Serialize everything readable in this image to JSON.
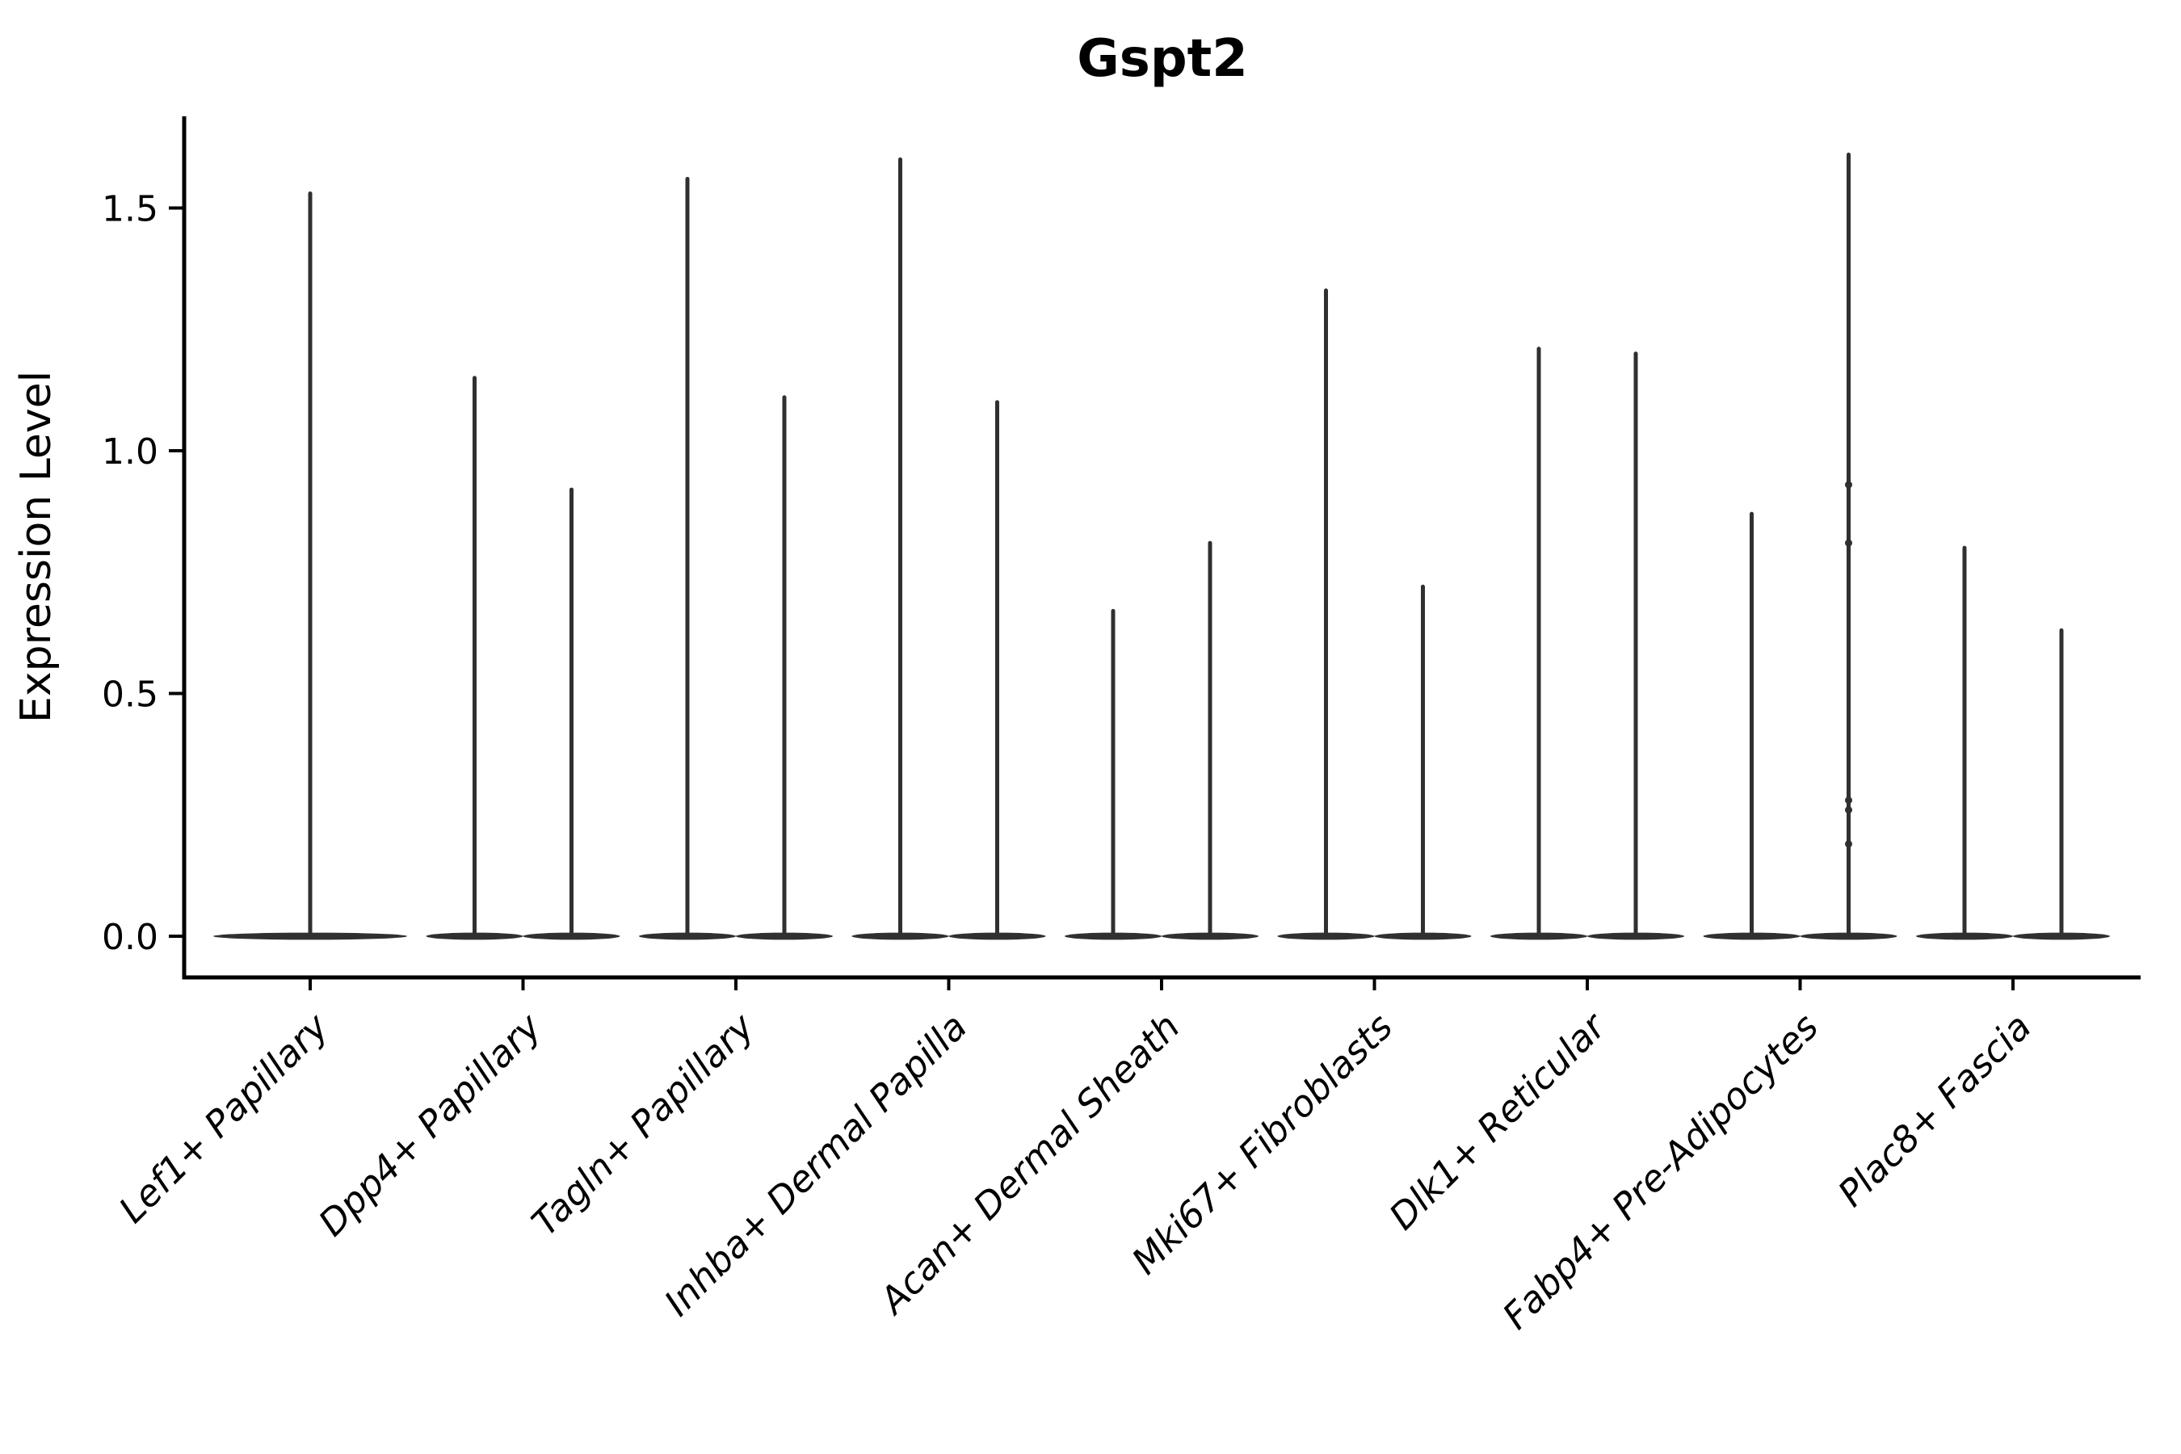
{
  "figure": {
    "background": "#ffffff"
  },
  "chart_data": {
    "type": "violin",
    "title": "Gspt2",
    "xlabel": "",
    "ylabel": "Expression Level",
    "ylim": [
      -0.085,
      1.69
    ],
    "yticks": [
      0.0,
      0.5,
      1.0,
      1.5
    ],
    "ytick_labels": [
      "0.0",
      "0.5",
      "1.0",
      "1.5"
    ],
    "grid": "off",
    "legend_position": "none",
    "categories": [
      "Lef1+ Papillary",
      "Dpp4+ Papillary",
      "Tagln+ Papillary",
      "Inhba+ Dermal Papilla",
      "Acan+ Dermal Sheath",
      "Mki67+ Fibroblasts",
      "Dlk1+ Reticular",
      "Fabp4+ Pre-Adipocytes",
      "Plac8+ Fascia"
    ],
    "violin_style_note": "sparse expression: each violin is a flat lens at 0 with a thin spike to its maximum; two grouped violins per category except the first category which has one full-width violin",
    "violins": [
      {
        "category": "Lef1+ Papillary",
        "groups": [
          {
            "side": "center",
            "max": 1.53
          }
        ]
      },
      {
        "category": "Dpp4+ Papillary",
        "groups": [
          {
            "side": "left",
            "max": 1.15
          },
          {
            "side": "right",
            "max": 0.92
          }
        ]
      },
      {
        "category": "Tagln+ Papillary",
        "groups": [
          {
            "side": "left",
            "max": 1.56
          },
          {
            "side": "right",
            "max": 1.11
          }
        ]
      },
      {
        "category": "Inhba+ Dermal Papilla",
        "groups": [
          {
            "side": "left",
            "max": 1.6
          },
          {
            "side": "right",
            "max": 1.1
          }
        ]
      },
      {
        "category": "Acan+ Dermal Sheath",
        "groups": [
          {
            "side": "left",
            "max": 0.67
          },
          {
            "side": "right",
            "max": 0.81
          }
        ]
      },
      {
        "category": "Mki67+ Fibroblasts",
        "groups": [
          {
            "side": "left",
            "max": 1.33
          },
          {
            "side": "right",
            "max": 0.72
          }
        ]
      },
      {
        "category": "Dlk1+ Reticular",
        "groups": [
          {
            "side": "left",
            "max": 1.21
          },
          {
            "side": "right",
            "max": 1.2
          }
        ]
      },
      {
        "category": "Fabp4+ Pre-Adipocytes",
        "groups": [
          {
            "side": "left",
            "max": 0.87
          },
          {
            "side": "right",
            "max": 1.61,
            "points": [
              0.93,
              0.81,
              0.28,
              0.26,
              0.19
            ]
          }
        ]
      },
      {
        "category": "Plac8+ Fascia",
        "groups": [
          {
            "side": "left",
            "max": 0.8
          },
          {
            "side": "right",
            "max": 0.63
          }
        ]
      }
    ],
    "colors": {
      "violin": "#303030",
      "axis": "#000000",
      "text": "#000000",
      "background": "#ffffff"
    }
  }
}
